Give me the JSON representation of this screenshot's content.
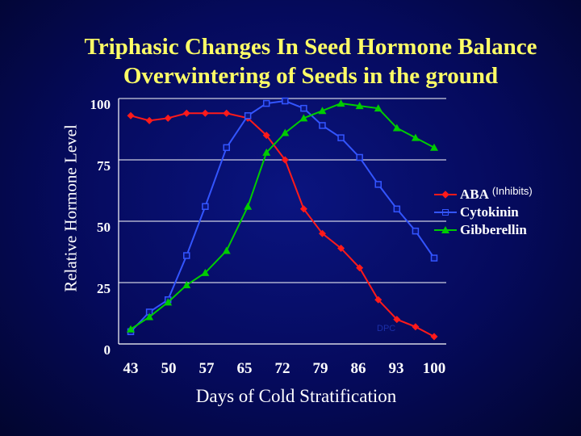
{
  "chart_data": {
    "type": "line",
    "title": [
      "Triphasic Changes In Seed Hormone Balance",
      "Overwintering of Seeds in the ground"
    ],
    "xlabel": "Days of Cold Stratification",
    "ylabel": "Relative Hormone Level",
    "ylim": [
      0,
      100
    ],
    "yticks": [
      "0",
      "25",
      "50",
      "75",
      "100"
    ],
    "xtick_labels": [
      "43",
      "50",
      "57",
      "65",
      "72",
      "79",
      "86",
      "93",
      "100"
    ],
    "x": [
      43,
      46.5,
      50,
      53.5,
      57,
      61,
      65,
      68.5,
      72,
      75.5,
      79,
      82.5,
      86,
      89.5,
      93,
      96.5,
      100
    ],
    "series": [
      {
        "name": "ABA",
        "note": "(Inhibits)",
        "color": "#ff1a1a",
        "marker": "diamond",
        "values": [
          93,
          91,
          92,
          94,
          94,
          94,
          92,
          85,
          75,
          55,
          45,
          39,
          31,
          18,
          10,
          7,
          3
        ]
      },
      {
        "name": "Cytokinin",
        "color": "#3355ff",
        "marker": "square",
        "values": [
          5,
          13,
          18,
          36,
          56,
          80,
          93,
          98,
          99,
          96,
          89,
          84,
          76,
          65,
          55,
          46,
          35
        ]
      },
      {
        "name": "Gibberellin",
        "color": "#00cc00",
        "marker": "triangle",
        "values": [
          6,
          11,
          17,
          24,
          29,
          38,
          56,
          78,
          86,
          92,
          95,
          98,
          97,
          96,
          88,
          84,
          80
        ]
      }
    ],
    "grid": true,
    "legend_position": "right",
    "watermark": "DPC"
  }
}
